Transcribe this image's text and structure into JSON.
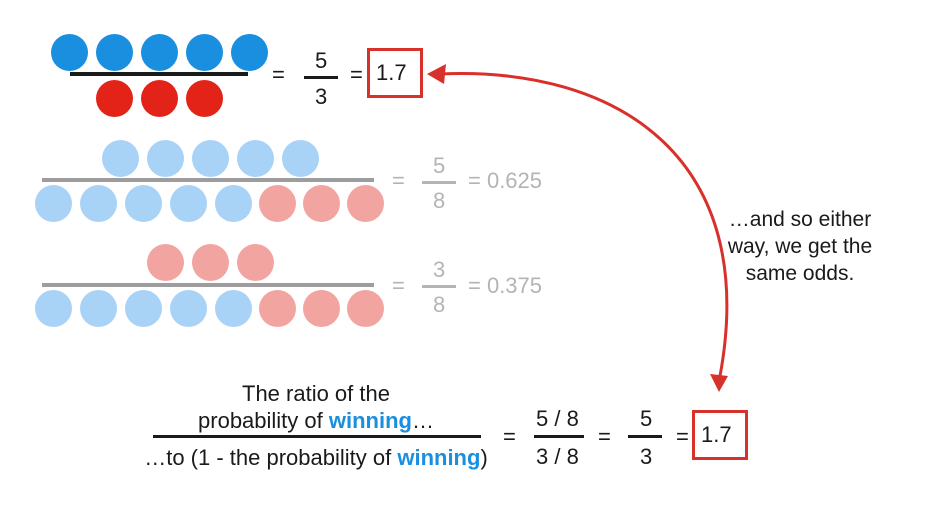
{
  "colors": {
    "blue": "#1a8fe0",
    "red": "#e42318",
    "light_blue": "#a9d2f7",
    "light_red": "#f2a4a1",
    "dark_text": "#1a1a1a",
    "gray_text": "#b4b4b4",
    "arrow": "#d8302a"
  },
  "row1": {
    "eq1": "=",
    "num": "5",
    "den": "3",
    "eq2": "=",
    "result": "1.7"
  },
  "row2": {
    "eq1": "=",
    "num": "5",
    "den": "8",
    "result": "= 0.625"
  },
  "row3": {
    "eq1": "=",
    "num": "3",
    "den": "8",
    "result": "= 0.375"
  },
  "annotation": {
    "line1": "…and so either",
    "line2": "way, we get the",
    "line3": "same odds."
  },
  "bottom": {
    "num_line1": "The ratio of the",
    "num_line2_pre": "probability of ",
    "num_line2_hl": "winning",
    "num_line2_post": "…",
    "den_pre": "…to (1 - the probability of ",
    "den_hl": "winning",
    "den_post": ")",
    "eq1": "=",
    "frac1_num": "5 / 8",
    "frac1_den": "3 / 8",
    "eq2": "=",
    "frac2_num": "5",
    "frac2_den": "3",
    "eq3": "=",
    "result": "1.7"
  },
  "arrow_icon": "double-headed-curved-arrow-icon"
}
